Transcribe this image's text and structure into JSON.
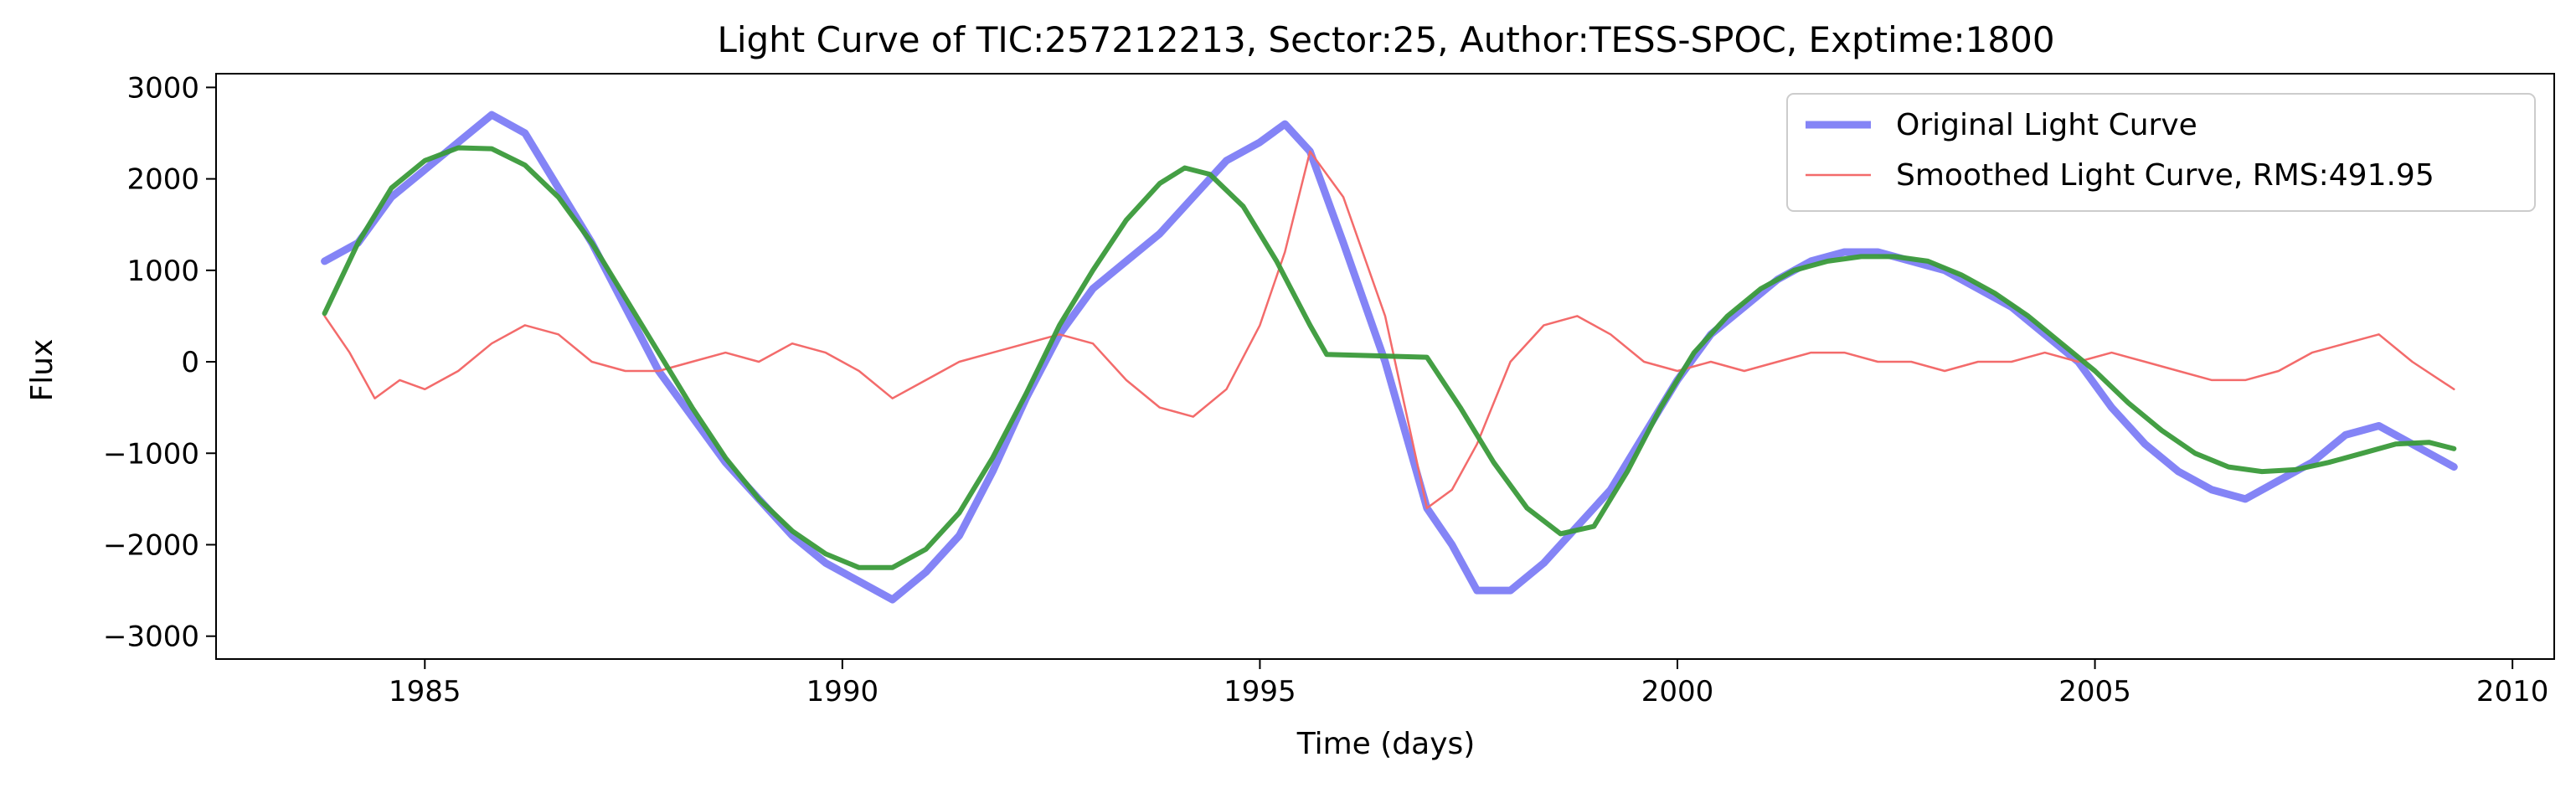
{
  "chart_data": {
    "type": "line",
    "title": "Light Curve of TIC:257212213, Sector:25, Author:TESS-SPOC, Exptime:1800",
    "xlabel": "Time (days)",
    "ylabel": "Flux",
    "xlim": [
      1982.5,
      2010.5
    ],
    "ylim": [
      -3250,
      3150
    ],
    "xticks": [
      1985,
      1990,
      1995,
      2000,
      2005,
      2010
    ],
    "xtick_labels": [
      "1985",
      "1990",
      "1995",
      "2000",
      "2005",
      "2010"
    ],
    "yticks": [
      -3000,
      -2000,
      -1000,
      0,
      1000,
      2000,
      3000
    ],
    "ytick_labels": [
      "−3000",
      "−2000",
      "−1000",
      "0",
      "1000",
      "2000",
      "3000"
    ],
    "grid": false,
    "legend_position": "top-right",
    "series": [
      {
        "name": "Original Light Curve",
        "color": "#6f6ff5",
        "style": "thick",
        "x": [
          1983.8,
          1984.2,
          1984.6,
          1985.0,
          1985.4,
          1985.8,
          1986.2,
          1986.6,
          1987.0,
          1987.4,
          1987.8,
          1988.2,
          1988.6,
          1989.0,
          1989.4,
          1989.8,
          1990.2,
          1990.6,
          1991.0,
          1991.4,
          1991.8,
          1992.2,
          1992.6,
          1993.0,
          1993.4,
          1993.8,
          1994.2,
          1994.6,
          1995.0,
          1995.3,
          1995.6,
          1996.0,
          1996.5,
          1997.0,
          1997.3,
          1997.6,
          1998.0,
          1998.4,
          1998.8,
          1999.2,
          1999.6,
          2000.0,
          2000.4,
          2000.8,
          2001.2,
          2001.6,
          2002.0,
          2002.4,
          2002.8,
          2003.2,
          2003.6,
          2004.0,
          2004.4,
          2004.8,
          2005.2,
          2005.6,
          2006.0,
          2006.4,
          2006.8,
          2007.2,
          2007.6,
          2008.0,
          2008.4,
          2008.8,
          2009.3
        ],
        "y": [
          1100,
          1300,
          1800,
          2100,
          2400,
          2700,
          2500,
          1900,
          1300,
          600,
          -100,
          -600,
          -1100,
          -1500,
          -1900,
          -2200,
          -2400,
          -2600,
          -2300,
          -1900,
          -1200,
          -400,
          300,
          800,
          1100,
          1400,
          1800,
          2200,
          2400,
          2600,
          2300,
          1300,
          0,
          -1600,
          -2000,
          -2500,
          -2500,
          -2200,
          -1800,
          -1400,
          -800,
          -200,
          300,
          600,
          900,
          1100,
          1200,
          1200,
          1100,
          1000,
          800,
          600,
          300,
          0,
          -500,
          -900,
          -1200,
          -1400,
          -1500,
          -1300,
          -1100,
          -800,
          -700,
          -900,
          -1150
        ]
      },
      {
        "name": "Smoothed Light Curve, RMS:491.95",
        "color": "#f36b6b",
        "style": "thin",
        "x": [
          1983.8,
          1984.1,
          1984.4,
          1984.7,
          1985.0,
          1985.4,
          1985.8,
          1986.2,
          1986.6,
          1987.0,
          1987.4,
          1987.8,
          1988.2,
          1988.6,
          1989.0,
          1989.4,
          1989.8,
          1990.2,
          1990.6,
          1991.0,
          1991.4,
          1991.8,
          1992.2,
          1992.6,
          1993.0,
          1993.4,
          1993.8,
          1994.2,
          1994.6,
          1995.0,
          1995.3,
          1995.6,
          1996.0,
          1996.5,
          1997.0,
          1997.3,
          1997.6,
          1998.0,
          1998.4,
          1998.8,
          1999.2,
          1999.6,
          2000.0,
          2000.4,
          2000.8,
          2001.2,
          2001.6,
          2002.0,
          2002.4,
          2002.8,
          2003.2,
          2003.6,
          2004.0,
          2004.4,
          2004.8,
          2005.2,
          2005.6,
          2006.0,
          2006.4,
          2006.8,
          2007.2,
          2007.6,
          2008.0,
          2008.4,
          2008.8,
          2009.3
        ],
        "y": [
          500,
          100,
          -400,
          -200,
          -300,
          -100,
          200,
          400,
          300,
          0,
          -100,
          -100,
          0,
          100,
          0,
          200,
          100,
          -100,
          -400,
          -200,
          0,
          100,
          200,
          300,
          200,
          -200,
          -500,
          -600,
          -300,
          400,
          1200,
          2300,
          1800,
          500,
          -1600,
          -1400,
          -900,
          0,
          400,
          500,
          300,
          0,
          -100,
          0,
          -100,
          0,
          100,
          100,
          0,
          0,
          -100,
          0,
          0,
          100,
          0,
          100,
          0,
          -100,
          -200,
          -200,
          -100,
          100,
          200,
          300,
          0,
          -300
        ]
      },
      {
        "name": "",
        "color": "#3a9a3a",
        "style": "medium",
        "x": [
          1983.8,
          1984.2,
          1984.6,
          1985.0,
          1985.4,
          1985.8,
          1986.2,
          1986.6,
          1987.0,
          1987.4,
          1987.8,
          1988.2,
          1988.6,
          1989.0,
          1989.4,
          1989.8,
          1990.2,
          1990.6,
          1991.0,
          1991.4,
          1991.8,
          1992.2,
          1992.6,
          1993.0,
          1993.4,
          1993.8,
          1994.1,
          1994.4,
          1994.8,
          1995.2,
          1995.6,
          1995.8,
          1997.0,
          1997.4,
          1997.8,
          1998.2,
          1998.6,
          1999.0,
          1999.4,
          1999.8,
          2000.2,
          2000.6,
          2001.0,
          2001.4,
          2001.8,
          2002.2,
          2002.6,
          2003.0,
          2003.4,
          2003.8,
          2004.2,
          2004.6,
          2005.0,
          2005.4,
          2005.8,
          2006.2,
          2006.6,
          2007.0,
          2007.4,
          2007.8,
          2008.2,
          2008.6,
          2009.0,
          2009.3
        ],
        "y": [
          530,
          1300,
          1900,
          2200,
          2340,
          2330,
          2150,
          1800,
          1300,
          700,
          100,
          -500,
          -1050,
          -1500,
          -1850,
          -2100,
          -2250,
          -2250,
          -2050,
          -1650,
          -1050,
          -350,
          400,
          1000,
          1550,
          1950,
          2120,
          2050,
          1700,
          1100,
          400,
          80,
          50,
          -500,
          -1100,
          -1600,
          -1880,
          -1800,
          -1200,
          -500,
          100,
          500,
          800,
          1000,
          1100,
          1150,
          1150,
          1100,
          950,
          750,
          500,
          200,
          -100,
          -450,
          -750,
          -1000,
          -1150,
          -1200,
          -1180,
          -1100,
          -1000,
          -900,
          -880,
          -950
        ]
      }
    ]
  }
}
